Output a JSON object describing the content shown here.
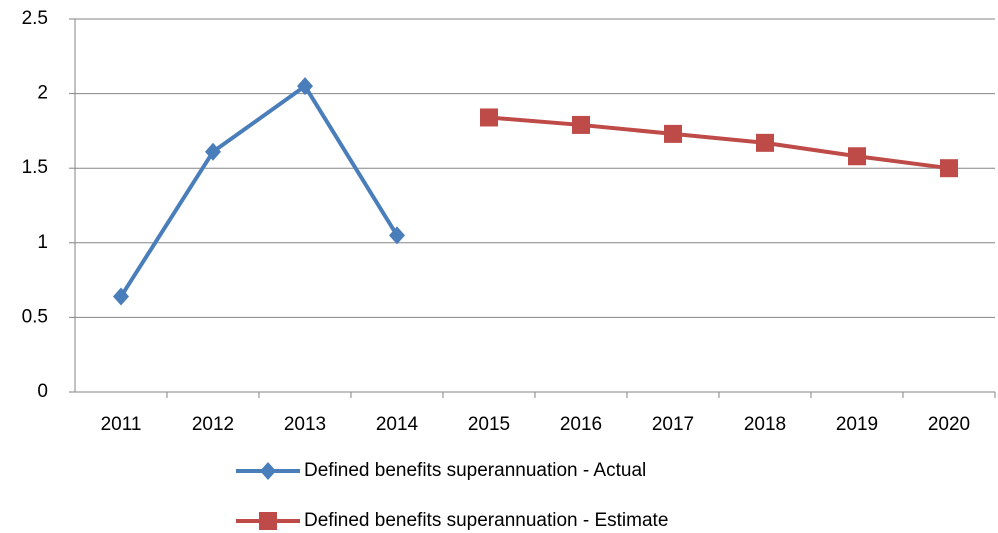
{
  "chart_data": {
    "type": "line",
    "categories": [
      "2011",
      "2012",
      "2013",
      "2014",
      "2015",
      "2016",
      "2017",
      "2018",
      "2019",
      "2020"
    ],
    "series": [
      {
        "name": "Defined benefits superannuation - Actual",
        "color": "#4a7ebb",
        "marker": "diamond",
        "values": [
          0.64,
          1.61,
          2.05,
          1.05,
          null,
          null,
          null,
          null,
          null,
          null
        ]
      },
      {
        "name": "Defined benefits superannuation - Estimate",
        "color": "#be4b48",
        "marker": "square",
        "values": [
          null,
          null,
          null,
          null,
          1.84,
          1.79,
          1.73,
          1.67,
          1.58,
          1.5
        ]
      }
    ],
    "ylim": [
      0,
      2.5
    ],
    "yticks": [
      0,
      0.5,
      1,
      1.5,
      2,
      2.5
    ],
    "grid": true,
    "legend": "bottom"
  }
}
